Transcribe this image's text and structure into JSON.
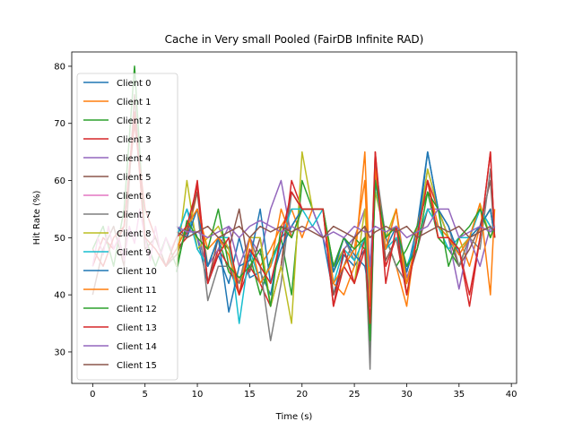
{
  "chart_data": {
    "type": "line",
    "title": "Cache in Very small Pooled (FairDB Infinite RAD)",
    "xlabel": "Time (s)",
    "ylabel": "Hit Rate (%)",
    "xlim": [
      -2,
      40.5
    ],
    "ylim": [
      24.5,
      82.5
    ],
    "xticks": [
      0,
      5,
      10,
      15,
      20,
      25,
      30,
      35,
      40
    ],
    "yticks": [
      30,
      40,
      50,
      60,
      70,
      80
    ],
    "legend_position": "upper-left",
    "grid": false,
    "series": [
      {
        "name": "Client 0",
        "color": "#1f77b4",
        "x": [
          8,
          9,
          10,
          11,
          12,
          13,
          14,
          15,
          16,
          17,
          18,
          19,
          20,
          21,
          22,
          23,
          24,
          25,
          26,
          26.5,
          27,
          28,
          29,
          30,
          31,
          32,
          33,
          34,
          35,
          36,
          37,
          38,
          38.4
        ],
        "y": [
          50,
          55,
          50,
          42,
          47,
          42,
          50,
          43,
          44,
          40,
          50,
          52,
          55,
          55,
          50,
          40,
          47,
          45,
          48,
          38,
          62,
          48,
          52,
          44,
          52,
          65,
          55,
          50,
          48,
          50,
          55,
          52,
          50
        ]
      },
      {
        "name": "Client 1",
        "color": "#ff7f0e",
        "x": [
          8,
          9,
          10,
          11,
          12,
          13,
          14,
          15,
          16,
          17,
          18,
          19,
          20,
          21,
          22,
          23,
          24,
          25,
          26,
          26.5,
          27,
          28,
          29,
          30,
          31,
          32,
          33,
          34,
          35,
          36,
          37,
          38,
          38.4
        ],
        "y": [
          52,
          50,
          58,
          45,
          50,
          48,
          42,
          50,
          45,
          48,
          52,
          55,
          50,
          55,
          55,
          42,
          40,
          45,
          65,
          42,
          60,
          50,
          45,
          38,
          52,
          60,
          50,
          48,
          50,
          45,
          52,
          55,
          50
        ]
      },
      {
        "name": "Client 2",
        "color": "#2ca02c",
        "x": [
          0,
          1,
          2,
          3,
          4,
          5,
          6,
          7,
          8,
          9,
          10,
          11,
          12,
          13,
          14,
          15,
          16,
          17,
          18,
          19,
          20,
          21,
          22,
          23,
          24,
          25,
          26,
          26.5,
          27,
          28,
          29,
          30,
          31,
          32,
          33,
          34,
          35,
          36,
          37,
          38,
          38.4
        ],
        "y": [
          48,
          52,
          45,
          55,
          80,
          50,
          45,
          50,
          45,
          52,
          55,
          45,
          50,
          44,
          42,
          47,
          40,
          46,
          50,
          40,
          60,
          55,
          55,
          44,
          48,
          50,
          48,
          30,
          62,
          50,
          45,
          48,
          52,
          58,
          50,
          48,
          45,
          50,
          52,
          55,
          50
        ]
      },
      {
        "name": "Client 3",
        "color": "#d62728",
        "x": [
          0,
          1,
          2,
          3,
          4,
          5,
          6,
          7,
          8,
          9,
          10,
          11,
          12,
          13,
          14,
          15,
          16,
          17,
          18,
          19,
          20,
          21,
          22,
          23,
          24,
          25,
          26,
          26.5,
          27,
          28,
          29,
          30,
          31,
          32,
          33,
          34,
          35,
          36,
          37,
          38,
          38.4
        ],
        "y": [
          45,
          50,
          48,
          52,
          70,
          55,
          50,
          45,
          48,
          50,
          60,
          42,
          48,
          45,
          40,
          45,
          42,
          38,
          45,
          60,
          55,
          55,
          55,
          38,
          45,
          42,
          50,
          40,
          65,
          45,
          50,
          40,
          50,
          60,
          55,
          50,
          48,
          38,
          50,
          65,
          50
        ]
      },
      {
        "name": "Client 4",
        "color": "#9467bd",
        "x": [
          8,
          9,
          10,
          11,
          12,
          13,
          14,
          15,
          16,
          17,
          18,
          19,
          20,
          21,
          22,
          23,
          24,
          25,
          26,
          26.5,
          27,
          28,
          29,
          30,
          31,
          32,
          33,
          34,
          35,
          36,
          37,
          38,
          38.4
        ],
        "y": [
          50,
          52,
          50,
          45,
          48,
          52,
          45,
          50,
          47,
          55,
          60,
          50,
          55,
          55,
          50,
          45,
          48,
          50,
          55,
          45,
          60,
          48,
          55,
          43,
          48,
          55,
          55,
          50,
          41,
          50,
          45,
          52,
          50
        ]
      },
      {
        "name": "Client 5",
        "color": "#8c564b",
        "x": [
          0,
          1,
          2,
          3,
          4,
          5,
          6,
          7,
          8,
          9,
          10,
          11,
          12,
          13,
          14,
          15,
          16,
          17,
          18,
          19,
          20,
          21,
          22,
          23,
          24,
          25,
          26,
          26.5,
          27,
          28,
          29,
          30,
          31,
          32,
          33,
          34,
          35,
          36,
          37,
          38,
          38.4
        ],
        "y": [
          40,
          48,
          52,
          45,
          75,
          48,
          50,
          45,
          47,
          51,
          58,
          42,
          50,
          48,
          55,
          44,
          50,
          38,
          45,
          58,
          55,
          55,
          55,
          40,
          45,
          50,
          52,
          38,
          62,
          46,
          50,
          42,
          48,
          55,
          52,
          50,
          45,
          48,
          52,
          60,
          50
        ]
      },
      {
        "name": "Client 6",
        "color": "#e377c2",
        "x": [
          0,
          0.5,
          1,
          1.5,
          2,
          2.5,
          3,
          3.5,
          4,
          4.5,
          5,
          5.5,
          6,
          6.5,
          7,
          7.5,
          8
        ],
        "y": [
          45,
          50,
          47,
          52,
          48,
          50,
          46,
          52,
          49,
          55,
          50,
          46,
          52,
          47,
          50,
          48,
          50
        ]
      },
      {
        "name": "Client 7",
        "color": "#7f7f7f",
        "x": [
          8,
          9,
          10,
          11,
          12,
          13,
          14,
          15,
          16,
          17,
          18,
          19,
          20,
          21,
          22,
          23,
          24,
          25,
          26,
          26.5,
          27,
          28,
          29,
          30,
          31,
          32,
          33,
          34,
          35,
          36,
          37,
          38,
          38.4
        ],
        "y": [
          48,
          52,
          55,
          39,
          45,
          45,
          42,
          50,
          45,
          32,
          42,
          58,
          55,
          55,
          55,
          45,
          50,
          46,
          50,
          27,
          63,
          50,
          45,
          42,
          50,
          62,
          55,
          52,
          45,
          50,
          48,
          62,
          50
        ]
      },
      {
        "name": "Client 8",
        "color": "#bcbd22",
        "x": [
          8,
          9,
          10,
          11,
          12,
          13,
          14,
          15,
          16,
          17,
          18,
          19,
          20,
          21,
          22,
          23,
          24,
          25,
          26,
          26.5,
          27,
          28,
          29,
          30,
          31,
          32,
          33,
          34,
          35,
          36,
          37,
          38,
          38.4
        ],
        "y": [
          45,
          60,
          48,
          50,
          52,
          48,
          40,
          50,
          50,
          38,
          45,
          35,
          65,
          55,
          55,
          45,
          48,
          42,
          55,
          40,
          58,
          50,
          55,
          40,
          50,
          62,
          55,
          50,
          48,
          50,
          56,
          50,
          52
        ]
      },
      {
        "name": "Client 9",
        "color": "#17becf",
        "x": [
          8,
          9,
          10,
          11,
          12,
          13,
          14,
          15,
          16,
          17,
          18,
          19,
          20,
          21,
          22,
          23,
          24,
          25,
          26,
          26.5,
          27,
          28,
          29,
          30,
          31,
          32,
          33,
          34,
          35,
          36,
          37,
          38,
          38.4
        ],
        "y": [
          50,
          55,
          48,
          45,
          50,
          50,
          35,
          48,
          42,
          45,
          50,
          55,
          55,
          52,
          55,
          42,
          48,
          46,
          50,
          38,
          60,
          48,
          50,
          45,
          50,
          55,
          52,
          48,
          50,
          50,
          55,
          52,
          50
        ]
      },
      {
        "name": "Client 10",
        "color": "#1f77b4",
        "x": [
          8,
          9,
          10,
          11,
          12,
          13,
          14,
          15,
          16,
          17,
          18,
          19,
          20,
          21,
          22,
          23,
          24,
          25,
          26,
          26.5,
          27,
          28,
          29,
          30,
          31,
          32,
          33,
          34,
          35,
          36,
          37,
          38,
          38.4
        ],
        "y": [
          52,
          50,
          55,
          45,
          50,
          37,
          45,
          46,
          55,
          42,
          48,
          52,
          55,
          55,
          55,
          44,
          50,
          47,
          45,
          40,
          60,
          50,
          52,
          44,
          50,
          65,
          55,
          52,
          47,
          50,
          52,
          55,
          50
        ]
      },
      {
        "name": "Client 11",
        "color": "#ff7f0e",
        "x": [
          8,
          9,
          10,
          11,
          12,
          13,
          14,
          15,
          16,
          17,
          18,
          19,
          20,
          21,
          22,
          23,
          24,
          25,
          26,
          26.5,
          27,
          28,
          29,
          30,
          31,
          32,
          33,
          34,
          35,
          36,
          37,
          38,
          38.4
        ],
        "y": [
          48,
          52,
          55,
          48,
          50,
          47,
          40,
          50,
          42,
          45,
          55,
          50,
          55,
          55,
          55,
          42,
          45,
          48,
          60,
          38,
          62,
          48,
          55,
          42,
          50,
          60,
          52,
          50,
          47,
          50,
          56,
          40,
          55
        ]
      },
      {
        "name": "Client 12",
        "color": "#2ca02c",
        "x": [
          8,
          9,
          10,
          11,
          12,
          13,
          14,
          15,
          16,
          17,
          18,
          19,
          20,
          21,
          22,
          23,
          24,
          25,
          26,
          26.5,
          27,
          28,
          29,
          30,
          31,
          32,
          33,
          34,
          35,
          36,
          37,
          38,
          38.4
        ],
        "y": [
          44,
          53,
          50,
          48,
          55,
          45,
          43,
          45,
          48,
          38,
          52,
          50,
          55,
          55,
          55,
          45,
          50,
          48,
          50,
          32,
          60,
          50,
          52,
          45,
          48,
          58,
          55,
          45,
          50,
          52,
          55,
          50,
          52
        ]
      },
      {
        "name": "Client 13",
        "color": "#d62728",
        "x": [
          0,
          1,
          2,
          3,
          4,
          5,
          6,
          7,
          8,
          9,
          10,
          11,
          12,
          13,
          14,
          15,
          16,
          17,
          18,
          19,
          20,
          21,
          22,
          23,
          24,
          25,
          26,
          26.5,
          27,
          28,
          29,
          30,
          31,
          32,
          33,
          34,
          35,
          36,
          37,
          38,
          38.4
        ],
        "y": [
          48,
          45,
          50,
          52,
          72,
          50,
          48,
          45,
          50,
          52,
          59,
          42,
          47,
          50,
          40,
          48,
          45,
          42,
          50,
          58,
          55,
          55,
          55,
          38,
          48,
          42,
          48,
          35,
          65,
          42,
          52,
          40,
          50,
          60,
          50,
          50,
          48,
          40,
          50,
          65,
          50
        ]
      },
      {
        "name": "Client 14",
        "color": "#9467bd",
        "x": [
          8,
          9,
          10,
          11,
          12,
          13,
          14,
          15,
          16,
          17,
          18,
          19,
          20,
          21,
          22,
          23,
          24,
          25,
          26,
          26.5,
          27,
          28,
          29,
          30,
          31,
          32,
          33,
          34,
          35,
          36,
          37,
          38,
          38.4
        ],
        "y": [
          52,
          51,
          51,
          50,
          51,
          52,
          50,
          52,
          53,
          52,
          51,
          52,
          51,
          52,
          50,
          51,
          50,
          52,
          51,
          51,
          52,
          51,
          52,
          50,
          51,
          52,
          55,
          55,
          50,
          51,
          52,
          51,
          52
        ]
      },
      {
        "name": "Client 15",
        "color": "#8c564b",
        "x": [
          8,
          9,
          10,
          11,
          12,
          13,
          14,
          15,
          16,
          17,
          18,
          19,
          20,
          21,
          22,
          23,
          24,
          25,
          26,
          26.5,
          27,
          28,
          29,
          30,
          31,
          32,
          33,
          34,
          35,
          36,
          37,
          38,
          38.4
        ],
        "y": [
          51,
          50,
          51,
          52,
          50,
          51,
          52,
          50,
          52,
          51,
          52,
          51,
          52,
          51,
          50,
          52,
          51,
          50,
          52,
          50,
          51,
          52,
          51,
          52,
          50,
          51,
          52,
          51,
          52,
          50,
          51,
          52,
          51
        ]
      }
    ]
  }
}
